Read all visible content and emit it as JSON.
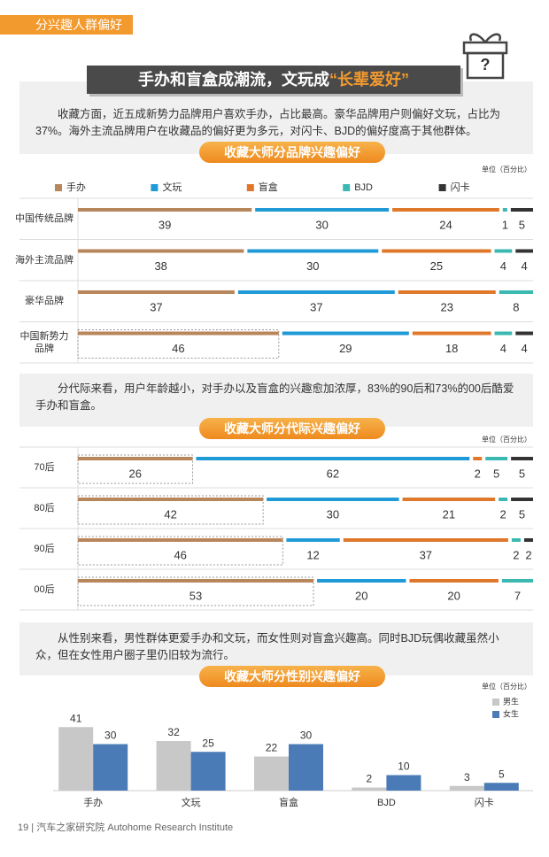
{
  "section_tag": "分兴趣人群偏好",
  "headline": {
    "main": "手办和盲盒成潮流，文玩成",
    "highlight": "“长辈爱好”"
  },
  "paragraphs": [
    "收藏方面，近五成新势力品牌用户喜欢手办，占比最高。豪华品牌用户则偏好文玩，占比为37%。海外主流品牌用户在收藏品的偏好更为多元，对闪卡、BJD的偏好度高于其他群体。",
    "分代际来看，用户年龄越小，对手办以及盲盒的兴趣愈加浓厚，83%的90后和73%的00后酷爱手办和盲盒。",
    "从性别来看，男性群体更爱手办和文玩，而女性则对盲盒兴趣高。同时BJD玩偶收藏虽然小众，但在女性用户圈子里仍旧较为流行。"
  ],
  "chart_data": [
    {
      "type": "stacked_bar_h",
      "title": "收藏大师分品牌兴趣偏好",
      "unit": "单位（百分比）",
      "legend": true,
      "categories": [
        "中国传统品牌",
        "海外主流品牌",
        "豪华品牌",
        "中国新势力品牌"
      ],
      "series": [
        {
          "name": "手办",
          "color": "#b8865b",
          "values": [
            39,
            38,
            37,
            46
          ]
        },
        {
          "name": "文玩",
          "color": "#1f9ad6",
          "values": [
            30,
            30,
            37,
            29
          ]
        },
        {
          "name": "盲盒",
          "color": "#e0782b",
          "values": [
            24,
            25,
            23,
            18
          ]
        },
        {
          "name": "BJD",
          "color": "#3cb8b2",
          "values": [
            1,
            4,
            8,
            4
          ]
        },
        {
          "name": "闪卡",
          "color": "#333333",
          "values": [
            5,
            4,
            null,
            4
          ]
        }
      ]
    },
    {
      "type": "stacked_bar_h",
      "title": "收藏大师分代际兴趣偏好",
      "unit": "单位（百分比）",
      "legend": false,
      "categories": [
        "70后",
        "80后",
        "90后",
        "00后"
      ],
      "series": [
        {
          "color": "#b8865b",
          "values": [
            26,
            42,
            46,
            53
          ]
        },
        {
          "color": "#1f9ad6",
          "values": [
            62,
            30,
            12,
            20
          ]
        },
        {
          "color": "#e0782b",
          "values": [
            2,
            21,
            37,
            20
          ]
        },
        {
          "color": "#3cb8b2",
          "values": [
            5,
            2,
            2,
            7
          ]
        },
        {
          "color": "#333333",
          "values": [
            5,
            5,
            2,
            null
          ]
        }
      ]
    },
    {
      "type": "bar",
      "title": "收藏大师分性别兴趣偏好",
      "unit": "单位（百分比）",
      "legend": true,
      "legend_position": "top-right",
      "categories": [
        "手办",
        "文玩",
        "盲盒",
        "BJD",
        "闪卡"
      ],
      "series": [
        {
          "name": "男生",
          "color": "#c8c8c8",
          "values": [
            41,
            32,
            22,
            2,
            3
          ]
        },
        {
          "name": "女生",
          "color": "#4a7bb7",
          "values": [
            30,
            25,
            30,
            10,
            5
          ]
        }
      ]
    }
  ],
  "footer": "19 | 汽车之家研究院 Autohome Research Institute"
}
